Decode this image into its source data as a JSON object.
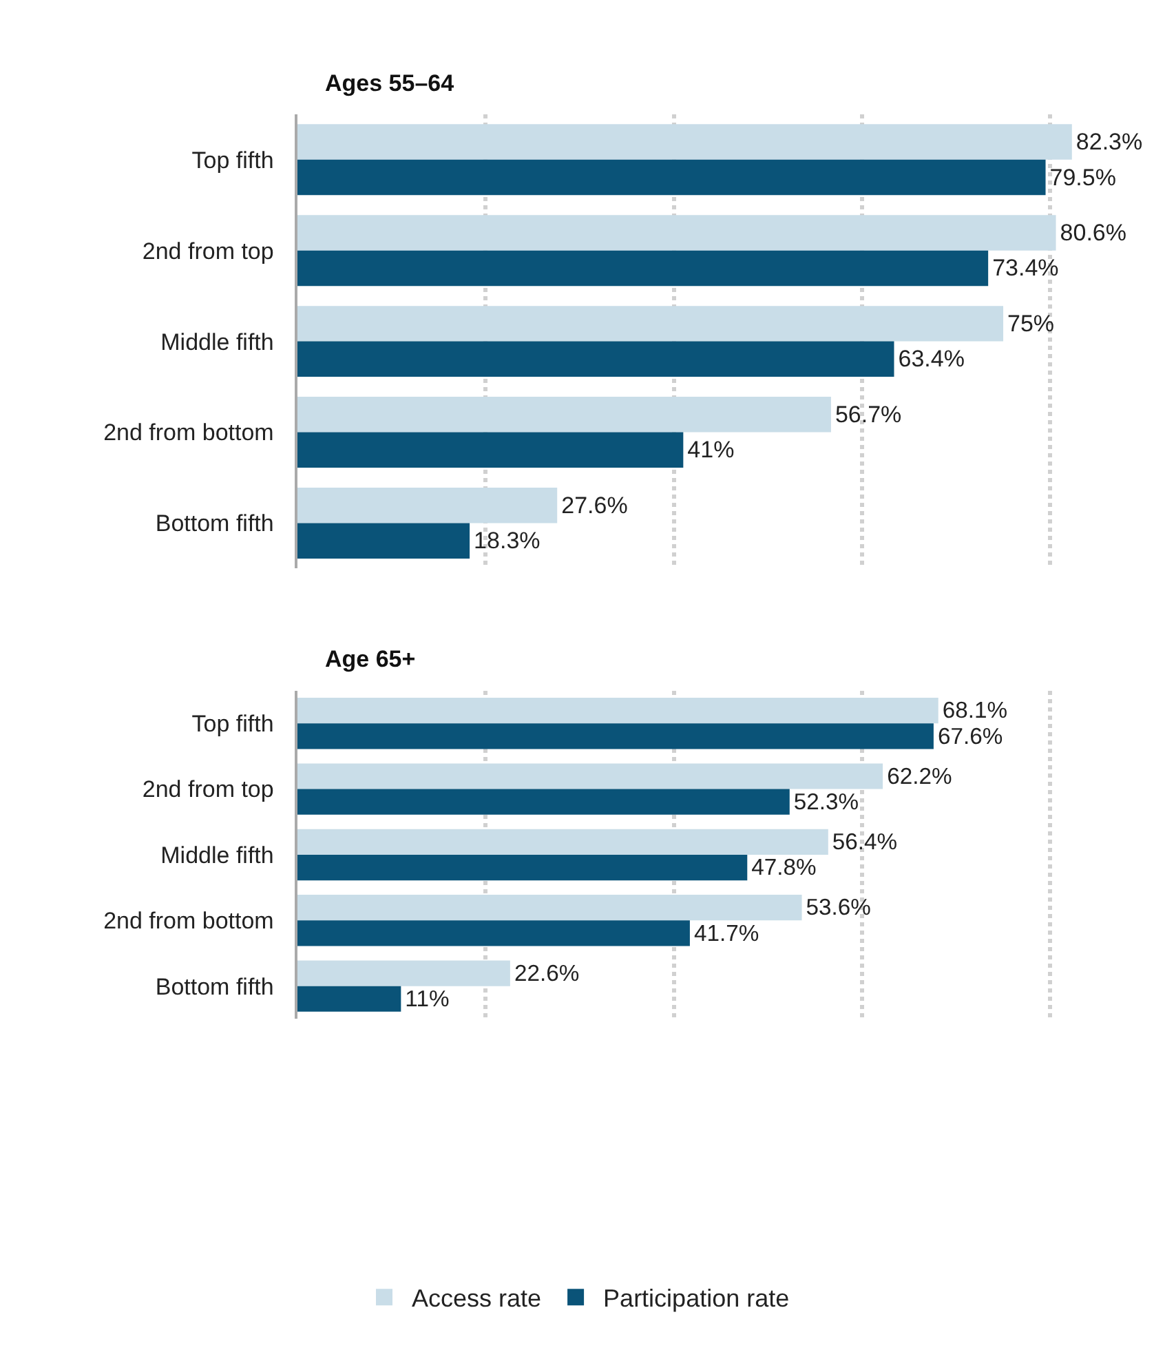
{
  "chart_data": [
    {
      "type": "bar",
      "orientation": "horizontal",
      "title": "Ages 55–64",
      "categories": [
        "Top fifth",
        "2nd from top",
        "Middle fifth",
        "2nd from bottom",
        "Bottom fifth"
      ],
      "series": [
        {
          "color": "#c9dde8",
          "values": [
            82.3,
            80.6,
            75,
            56.7,
            27.6
          ],
          "value_labels": [
            "82.3%",
            "80.6%",
            "75%",
            "56.7%",
            "27.6%"
          ]
        },
        {
          "color": "#0a5378",
          "values": [
            79.5,
            73.4,
            63.4,
            41,
            18.3
          ],
          "value_labels": [
            "79.5%",
            "73.4%",
            "63.4%",
            "41%",
            "18.3%"
          ]
        }
      ],
      "xticks": [
        {
          "value": 20,
          "label": null
        },
        {
          "value": 40,
          "label": null
        },
        {
          "value": 60,
          "label": null
        },
        {
          "value": 80,
          "label": null
        }
      ],
      "grid": "x",
      "tick_labels": "y"
    },
    {
      "type": "bar",
      "orientation": "horizontal",
      "title": "Age 65+",
      "categories": [
        "Top fifth",
        "2nd from top",
        "Middle fifth",
        "2nd from bottom",
        "Bottom fifth"
      ],
      "series": [
        {
          "name": "Access rate",
          "color": "#c9dde8",
          "values": [
            68.1,
            62.2,
            56.4,
            53.6,
            22.6
          ],
          "value_labels": [
            "68.1%",
            "62.2%",
            "56.4%",
            "53.6%",
            "22.6%"
          ]
        },
        {
          "name": "Participation rate",
          "color": "#0a5378",
          "values": [
            67.6,
            52.3,
            47.8,
            41.7,
            11
          ],
          "value_labels": [
            "67.6%",
            "52.3%",
            "47.8%",
            "41.7%",
            "11%"
          ]
        }
      ],
      "xticks": [
        {
          "value": 20,
          "label": null
        },
        {
          "value": 40,
          "label": null
        },
        {
          "value": 60,
          "label": null
        },
        {
          "value": 80,
          "label": null
        }
      ],
      "grid": "x",
      "tick_labels": "y",
      "legend": "bottom"
    }
  ]
}
